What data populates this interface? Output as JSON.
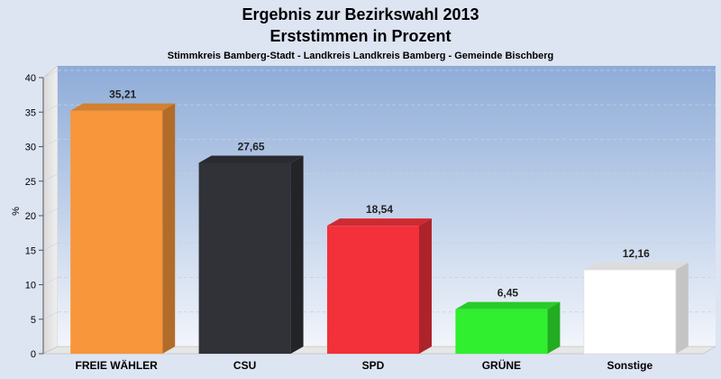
{
  "chart_data": {
    "type": "bar",
    "title": "Ergebnis zur Bezirkswahl 2013",
    "subtitle": "Erststimmen in Prozent",
    "caption": "Stimmkreis Bamberg-Stadt - Landkreis Landkreis Bamberg - Gemeinde Bischberg",
    "ylabel": "%",
    "xlabel": "",
    "ylim": [
      0,
      40
    ],
    "yticks": [
      0,
      5,
      10,
      15,
      20,
      25,
      30,
      35,
      40
    ],
    "grid": true,
    "categories": [
      "FREIE WÄHLER",
      "CSU",
      "SPD",
      "GRÜNE",
      "Sonstige"
    ],
    "values": [
      35.21,
      27.65,
      18.54,
      6.45,
      12.16
    ],
    "value_labels": [
      "35,21",
      "27,65",
      "18,54",
      "6,45",
      "12,16"
    ],
    "colors": [
      "#f7963a",
      "#303238",
      "#f2313a",
      "#2fef2f",
      "#ffffff"
    ]
  }
}
